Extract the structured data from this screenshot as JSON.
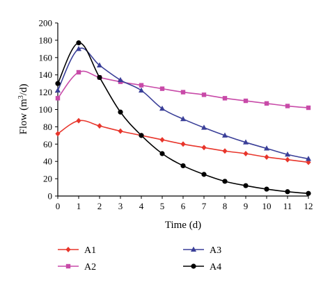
{
  "chart_data": {
    "type": "line",
    "title": "",
    "xlabel": "Time (d)",
    "ylabel": "Flow (m³/d)",
    "ylabel_parts": {
      "pre": "Flow (m",
      "sup": "3",
      "post": "/d)"
    },
    "x": [
      0,
      1,
      2,
      3,
      4,
      5,
      6,
      7,
      8,
      9,
      10,
      11,
      12
    ],
    "xlim": [
      0,
      12
    ],
    "ylim": [
      0,
      200
    ],
    "xticks": [
      "0",
      "1",
      "2",
      "3",
      "4",
      "5",
      "6",
      "7",
      "8",
      "9",
      "10",
      "11",
      "12"
    ],
    "yticks": [
      "0",
      "20",
      "40",
      "60",
      "80",
      "100",
      "120",
      "140",
      "160",
      "180",
      "200"
    ],
    "grid": false,
    "legend_position": "bottom",
    "series": [
      {
        "name": "A1",
        "color": "#e8352b",
        "marker": "diamond",
        "values": [
          72,
          87,
          81,
          75,
          70,
          65,
          60,
          56,
          52,
          49,
          45,
          42,
          39
        ]
      },
      {
        "name": "A2",
        "color": "#c84aa8",
        "marker": "square",
        "values": [
          113,
          143,
          137,
          132,
          128,
          124,
          120,
          117,
          113,
          110,
          107,
          104,
          102
        ]
      },
      {
        "name": "A3",
        "color": "#3a3f98",
        "marker": "triangle",
        "values": [
          122,
          170,
          151,
          134,
          122,
          101,
          89,
          79,
          70,
          62,
          55,
          48,
          43
        ]
      },
      {
        "name": "A4",
        "color": "#000000",
        "marker": "circle",
        "values": [
          130,
          177,
          137,
          97,
          70,
          49,
          35,
          25,
          17,
          12,
          8,
          5,
          3
        ]
      }
    ]
  }
}
